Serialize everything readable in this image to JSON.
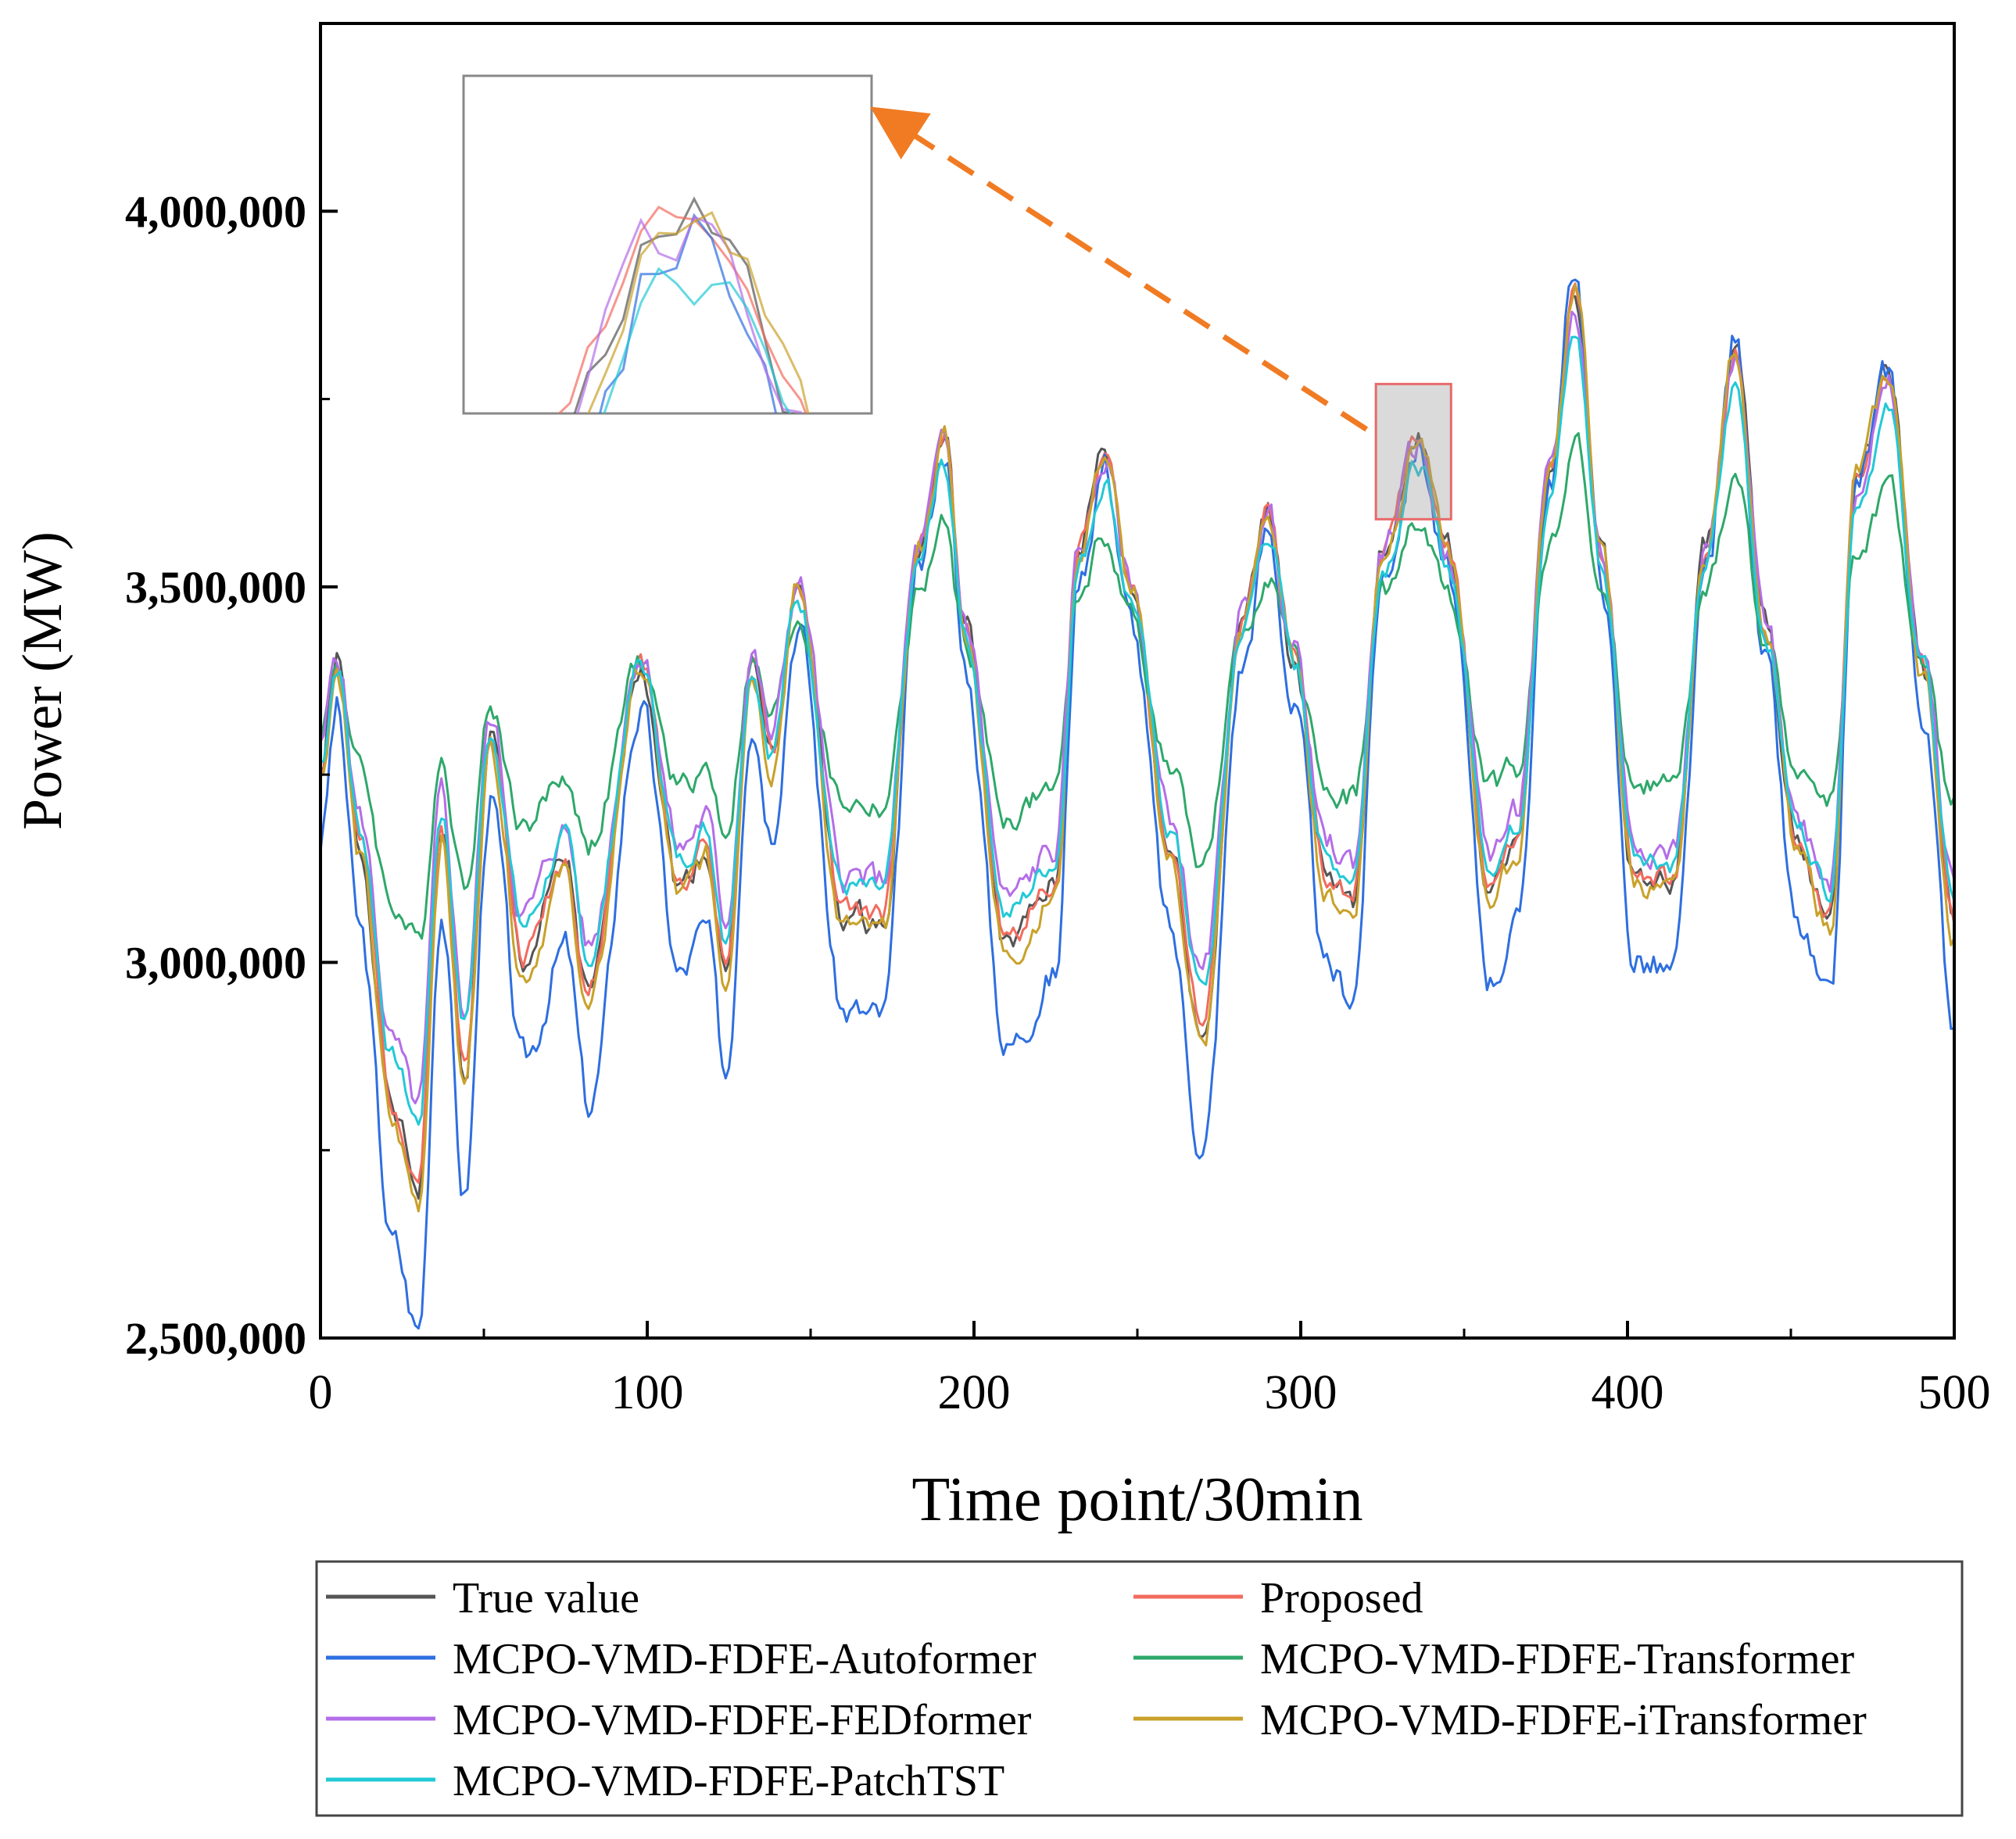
{
  "chart_data": {
    "type": "line",
    "title": "",
    "xlabel": "Time point/30min",
    "ylabel": "Power (MW)",
    "xlim": [
      0,
      500
    ],
    "ylim": [
      2500000,
      4250000
    ],
    "x_ticks": [
      0,
      100,
      200,
      300,
      400,
      500
    ],
    "x_tick_labels": [
      "0",
      "100",
      "200",
      "300",
      "400",
      "500"
    ],
    "y_ticks": [
      2500000,
      3000000,
      3500000,
      4000000
    ],
    "y_tick_labels": [
      "2,500,000",
      "3,000,000",
      "3,500,000",
      "4,000,000"
    ],
    "grid": false,
    "legend_position": "bottom",
    "zoom_region": {
      "x": [
        323,
        346
      ],
      "y": [
        3590000,
        3770000
      ]
    },
    "key_points": [
      {
        "x": 0,
        "y": 3250000
      },
      {
        "x": 5,
        "y": 3400000
      },
      {
        "x": 12,
        "y": 3150000
      },
      {
        "x": 22,
        "y": 2800000
      },
      {
        "x": 30,
        "y": 2700000
      },
      {
        "x": 37,
        "y": 3180000
      },
      {
        "x": 44,
        "y": 2850000
      },
      {
        "x": 52,
        "y": 3300000
      },
      {
        "x": 62,
        "y": 3000000
      },
      {
        "x": 75,
        "y": 3130000
      },
      {
        "x": 82,
        "y": 2950000
      },
      {
        "x": 98,
        "y": 3400000
      },
      {
        "x": 110,
        "y": 3100000
      },
      {
        "x": 118,
        "y": 3150000
      },
      {
        "x": 124,
        "y": 2990000
      },
      {
        "x": 132,
        "y": 3400000
      },
      {
        "x": 138,
        "y": 3270000
      },
      {
        "x": 146,
        "y": 3500000
      },
      {
        "x": 160,
        "y": 3060000
      },
      {
        "x": 172,
        "y": 3050000
      },
      {
        "x": 183,
        "y": 3550000
      },
      {
        "x": 191,
        "y": 3700000
      },
      {
        "x": 197,
        "y": 3450000
      },
      {
        "x": 210,
        "y": 3020000
      },
      {
        "x": 225,
        "y": 3100000
      },
      {
        "x": 232,
        "y": 3550000
      },
      {
        "x": 240,
        "y": 3680000
      },
      {
        "x": 248,
        "y": 3500000
      },
      {
        "x": 260,
        "y": 3150000
      },
      {
        "x": 270,
        "y": 2900000
      },
      {
        "x": 282,
        "y": 3450000
      },
      {
        "x": 290,
        "y": 3600000
      },
      {
        "x": 298,
        "y": 3400000
      },
      {
        "x": 308,
        "y": 3100000
      },
      {
        "x": 316,
        "y": 3080000
      },
      {
        "x": 325,
        "y": 3550000
      },
      {
        "x": 336,
        "y": 3700000
      },
      {
        "x": 345,
        "y": 3550000
      },
      {
        "x": 358,
        "y": 3100000
      },
      {
        "x": 366,
        "y": 3150000
      },
      {
        "x": 376,
        "y": 3650000
      },
      {
        "x": 384,
        "y": 3900000
      },
      {
        "x": 392,
        "y": 3550000
      },
      {
        "x": 402,
        "y": 3120000
      },
      {
        "x": 414,
        "y": 3100000
      },
      {
        "x": 424,
        "y": 3550000
      },
      {
        "x": 433,
        "y": 3820000
      },
      {
        "x": 442,
        "y": 3450000
      },
      {
        "x": 452,
        "y": 3150000
      },
      {
        "x": 462,
        "y": 3060000
      },
      {
        "x": 470,
        "y": 3650000
      },
      {
        "x": 480,
        "y": 3780000
      },
      {
        "x": 490,
        "y": 3400000
      },
      {
        "x": 500,
        "y": 3050000
      }
    ],
    "series": [
      {
        "name": "True value",
        "color": "#555555",
        "offset": 0,
        "amp": 1.0,
        "trend": 0,
        "noise": 0.55,
        "seed": 1
      },
      {
        "name": "Proposed",
        "color": "#f26b5e",
        "offset": 5000,
        "amp": 0.98,
        "trend": 0,
        "noise": 0.45,
        "seed": 2
      },
      {
        "name": "MCPO-VMD-FDFE-Autoformer",
        "color": "#2e6fe0",
        "offset": -90000,
        "amp": 1.18,
        "trend": 0,
        "noise": 0.7,
        "seed": 3
      },
      {
        "name": "MCPO-VMD-FDFE-Transformer",
        "color": "#2ea86a",
        "offset": 60000,
        "amp": 0.6,
        "trend": 0.14,
        "noise": 0.5,
        "seed": 4
      },
      {
        "name": "MCPO-VMD-FDFE-FEDformer",
        "color": "#b46ee8",
        "offset": 30000,
        "amp": 0.9,
        "trend": 0.06,
        "noise": 0.6,
        "seed": 5
      },
      {
        "name": "MCPO-VMD-FDFE-iTransformer",
        "color": "#c9a12a",
        "offset": -10000,
        "amp": 1.02,
        "trend": 0,
        "noise": 0.5,
        "seed": 6
      },
      {
        "name": "MCPO-VMD-FDFE-PatchTST",
        "color": "#22c9d6",
        "offset": 15000,
        "amp": 0.88,
        "trend": 0.02,
        "noise": 0.45,
        "seed": 7
      }
    ],
    "legend_order": [
      0,
      1,
      2,
      3,
      4,
      5,
      6
    ]
  }
}
